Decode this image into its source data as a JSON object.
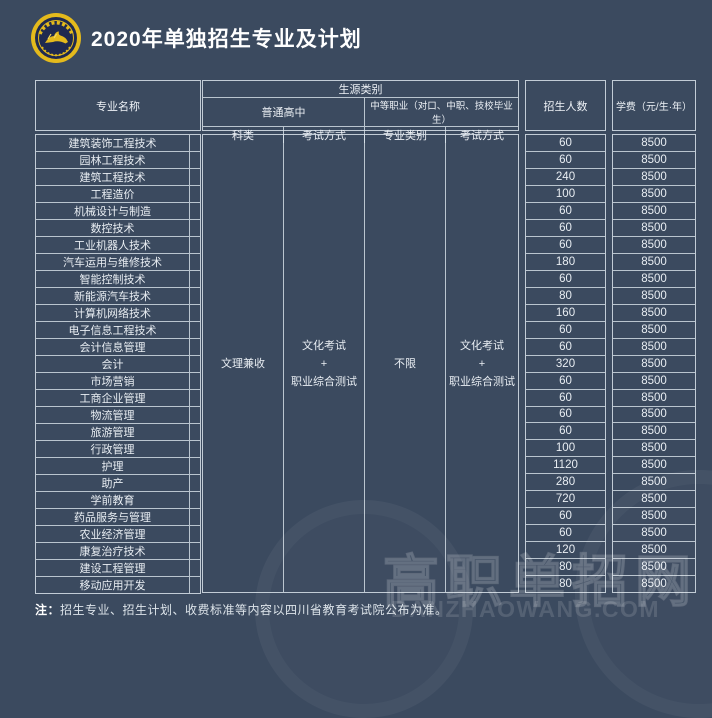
{
  "page": {
    "title": "2020年单独招生专业及计划"
  },
  "logo": {
    "name": "college-round-emblem",
    "ring_color": "#e4ba1c",
    "inner_color": "#1f2a50"
  },
  "table": {
    "header": {
      "major": "专业名称",
      "source_category": "生源类别",
      "regular_hs": "普通高中",
      "vocational": "中等职业（对口、中职、技校毕业生）",
      "subject_class": "科类",
      "exam_method_hs": "考试方式",
      "major_class": "专业类别",
      "exam_method_voc": "考试方式",
      "enrollment": "招生人数",
      "tuition": "学费（元/生·年）"
    },
    "merged": {
      "subject_class_value": "文理兼收",
      "exam_hs_lines": [
        "文化考试",
        "+",
        "职业综合测试"
      ],
      "major_class_value": "不限",
      "exam_voc_lines": [
        "文化考试",
        "+",
        "职业综合测试"
      ]
    },
    "rows": [
      {
        "major": "建筑装饰工程技术",
        "enrollment": "60",
        "tuition": "8500"
      },
      {
        "major": "园林工程技术",
        "enrollment": "60",
        "tuition": "8500"
      },
      {
        "major": "建筑工程技术",
        "enrollment": "240",
        "tuition": "8500"
      },
      {
        "major": "工程造价",
        "enrollment": "100",
        "tuition": "8500"
      },
      {
        "major": "机械设计与制造",
        "enrollment": "60",
        "tuition": "8500"
      },
      {
        "major": "数控技术",
        "enrollment": "60",
        "tuition": "8500"
      },
      {
        "major": "工业机器人技术",
        "enrollment": "60",
        "tuition": "8500"
      },
      {
        "major": "汽车运用与维修技术",
        "enrollment": "180",
        "tuition": "8500"
      },
      {
        "major": "智能控制技术",
        "enrollment": "60",
        "tuition": "8500"
      },
      {
        "major": "新能源汽车技术",
        "enrollment": "80",
        "tuition": "8500"
      },
      {
        "major": "计算机网络技术",
        "enrollment": "160",
        "tuition": "8500"
      },
      {
        "major": "电子信息工程技术",
        "enrollment": "60",
        "tuition": "8500"
      },
      {
        "major": "会计信息管理",
        "enrollment": "60",
        "tuition": "8500"
      },
      {
        "major": "会计",
        "enrollment": "320",
        "tuition": "8500"
      },
      {
        "major": "市场营销",
        "enrollment": "60",
        "tuition": "8500"
      },
      {
        "major": "工商企业管理",
        "enrollment": "60",
        "tuition": "8500"
      },
      {
        "major": "物流管理",
        "enrollment": "60",
        "tuition": "8500"
      },
      {
        "major": "旅游管理",
        "enrollment": "60",
        "tuition": "8500"
      },
      {
        "major": "行政管理",
        "enrollment": "100",
        "tuition": "8500"
      },
      {
        "major": "护理",
        "enrollment": "1120",
        "tuition": "8500"
      },
      {
        "major": "助产",
        "enrollment": "280",
        "tuition": "8500"
      },
      {
        "major": "学前教育",
        "enrollment": "720",
        "tuition": "8500"
      },
      {
        "major": "药品服务与管理",
        "enrollment": "60",
        "tuition": "8500"
      },
      {
        "major": "农业经济管理",
        "enrollment": "60",
        "tuition": "8500"
      },
      {
        "major": "康复治疗技术",
        "enrollment": "120",
        "tuition": "8500"
      },
      {
        "major": "建设工程管理",
        "enrollment": "80",
        "tuition": "8500"
      },
      {
        "major": "移动应用开发",
        "enrollment": "80",
        "tuition": "8500"
      }
    ]
  },
  "note": {
    "label": "注：",
    "text": "招生专业、招生计划、收费标准等内容以四川省教育考试院公布为准。"
  },
  "watermark": {
    "text": "高职单招网",
    "url": "DANZHAOWANG.COM"
  },
  "colors": {
    "background": "#3b4a5f",
    "border": "#dbe3eb",
    "text": "#e9eef3",
    "title": "#ffffff",
    "logo_gold": "#e4ba1c",
    "logo_navy": "#1f2a50"
  }
}
